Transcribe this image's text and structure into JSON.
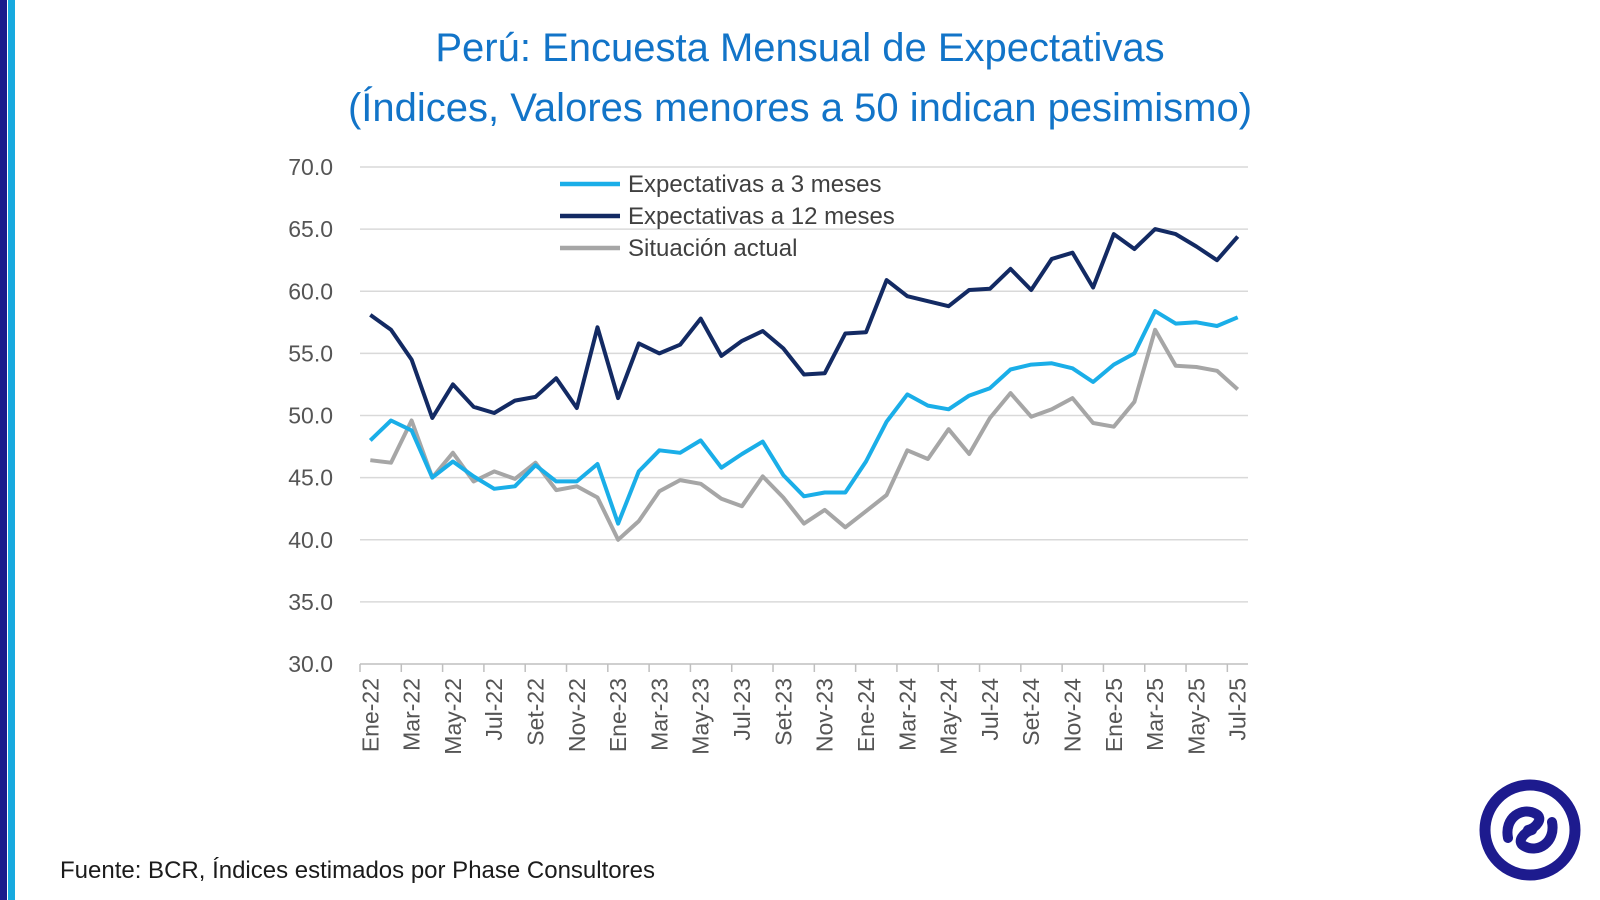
{
  "title_line1": "Perú: Encuesta Mensual de Expectativas",
  "title_line2": "(Índices, Valores menores a 50 indican pesimismo)",
  "source": "Fuente: BCR, Índices estimados por Phase Consultores",
  "colors": {
    "title": "#1274c8",
    "accent_dark": "#1a1a8c",
    "accent_light": "#16a9df",
    "logo": "#1d1b8e"
  },
  "logo_icon": "phase-consultores-logo-icon",
  "chart_data": {
    "type": "line",
    "title": "Perú: Encuesta Mensual de Expectativas (Índices, Valores menores a 50 indican pesimismo)",
    "xlabel": "",
    "ylabel": "",
    "ylim": [
      30,
      70
    ],
    "yticks": [
      "70.0",
      "65.0",
      "60.0",
      "55.0",
      "50.0",
      "45.0",
      "40.0",
      "35.0",
      "30.0"
    ],
    "grid": true,
    "legend_position": "top-center",
    "x": [
      "Ene-22",
      "Feb-22",
      "Mar-22",
      "Abr-22",
      "May-22",
      "Jun-22",
      "Jul-22",
      "Ago-22",
      "Set-22",
      "Oct-22",
      "Nov-22",
      "Dic-22",
      "Ene-23",
      "Feb-23",
      "Mar-23",
      "Abr-23",
      "May-23",
      "Jun-23",
      "Jul-23",
      "Ago-23",
      "Set-23",
      "Oct-23",
      "Nov-23",
      "Dic-23",
      "Ene-24",
      "Feb-24",
      "Mar-24",
      "Abr-24",
      "May-24",
      "Jun-24",
      "Jul-24",
      "Ago-24",
      "Set-24",
      "Oct-24",
      "Nov-24",
      "Dic-24",
      "Ene-25",
      "Feb-25",
      "Mar-25",
      "Abr-25",
      "May-25",
      "Jun-25",
      "Jul-25"
    ],
    "x_tick_labels": [
      "Ene-22",
      "Mar-22",
      "May-22",
      "Jul-22",
      "Set-22",
      "Nov-22",
      "Ene-23",
      "Mar-23",
      "May-23",
      "Jul-23",
      "Set-23",
      "Nov-23",
      "Ene-24",
      "Mar-24",
      "May-24",
      "Jul-24",
      "Set-24",
      "Nov-24",
      "Ene-25",
      "Mar-25",
      "May-25",
      "Jul-25"
    ],
    "series": [
      {
        "name": "Expectativas a 3 meses",
        "color": "#1aaee8",
        "values": [
          48.0,
          49.6,
          48.8,
          45.0,
          46.3,
          45.1,
          44.1,
          44.3,
          46.0,
          44.7,
          44.7,
          46.1,
          41.3,
          45.5,
          47.2,
          47.0,
          48.0,
          45.8,
          46.9,
          47.9,
          45.2,
          43.5,
          43.8,
          43.8,
          46.3,
          49.5,
          51.7,
          50.8,
          50.5,
          51.6,
          52.2,
          53.7,
          54.1,
          54.2,
          53.8,
          52.7,
          54.1,
          55.0,
          58.4,
          57.4,
          57.5,
          57.2,
          57.9
        ]
      },
      {
        "name": "Expectativas a 12 meses",
        "color": "#132a63",
        "values": [
          58.1,
          56.9,
          54.5,
          49.8,
          52.5,
          50.7,
          50.2,
          51.2,
          51.5,
          53.0,
          50.6,
          57.1,
          51.4,
          55.8,
          55.0,
          55.7,
          57.8,
          54.8,
          56.0,
          56.8,
          55.4,
          53.3,
          53.4,
          56.6,
          56.7,
          60.9,
          59.6,
          59.2,
          58.8,
          60.1,
          60.2,
          61.8,
          60.1,
          62.6,
          63.1,
          60.3,
          64.6,
          63.4,
          65.0,
          64.6,
          63.6,
          62.5,
          64.4
        ]
      },
      {
        "name": "Situación actual",
        "color": "#a6a6a6",
        "values": [
          46.4,
          46.2,
          49.6,
          45.0,
          47.0,
          44.7,
          45.5,
          44.9,
          46.2,
          44.0,
          44.3,
          43.4,
          40.0,
          41.5,
          43.9,
          44.8,
          44.5,
          43.3,
          42.7,
          45.1,
          43.4,
          41.3,
          42.4,
          41.0,
          42.3,
          43.6,
          47.2,
          46.5,
          48.9,
          46.9,
          49.8,
          51.8,
          49.9,
          50.5,
          51.4,
          49.4,
          49.1,
          51.1,
          56.9,
          54.0,
          53.9,
          53.6,
          52.1
        ]
      }
    ]
  }
}
